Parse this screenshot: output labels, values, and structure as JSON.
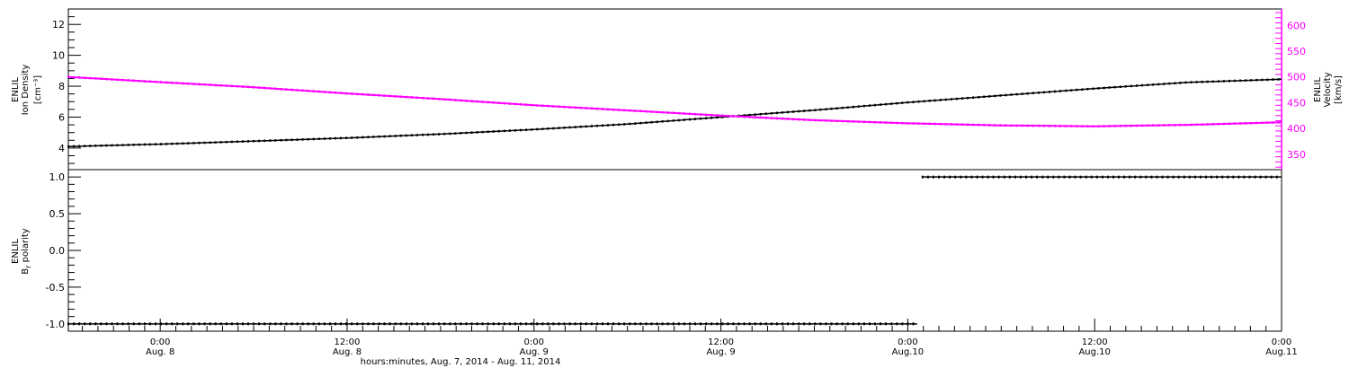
{
  "chart_data": [
    {
      "type": "line",
      "panel": "top",
      "xlabel": "hours:minutes, Aug.  7, 2014 - Aug. 11, 2014",
      "x_ticks": [
        {
          "time_hours": 12,
          "line1": "0:00",
          "line2": "Aug. 8"
        },
        {
          "time_hours": 24,
          "line1": "12:00",
          "line2": "Aug. 8"
        },
        {
          "time_hours": 36,
          "line1": "0:00",
          "line2": "Aug. 9"
        },
        {
          "time_hours": 48,
          "line1": "12:00",
          "line2": "Aug. 9"
        },
        {
          "time_hours": 60,
          "line1": "0:00",
          "line2": "Aug.10"
        },
        {
          "time_hours": 72,
          "line1": "12:00",
          "line2": "Aug.10"
        },
        {
          "time_hours": 84,
          "line1": "0:00",
          "line2": "Aug.11"
        }
      ],
      "xlim_hours": [
        6.1,
        84
      ],
      "left_axis": {
        "label_lines": [
          "ENLIL",
          "Ion Density",
          "[cm⁻³]"
        ],
        "ticks": [
          "4",
          "6",
          "8",
          "10",
          "12"
        ],
        "tick_values": [
          4,
          6,
          8,
          10,
          12
        ],
        "ylim": [
          2.6,
          13.0
        ],
        "color": "#000000"
      },
      "right_axis": {
        "label_lines": [
          "ENLIL",
          "Velocity",
          "[km/s]"
        ],
        "ticks": [
          "350",
          "400",
          "450",
          "500",
          "550",
          "600"
        ],
        "tick_values": [
          350,
          400,
          450,
          500,
          550,
          600
        ],
        "ylim": [
          320,
          632
        ],
        "color": "#ff00ff"
      },
      "series": [
        {
          "axis": "left",
          "color": "#000000",
          "x_hours": [
            6.1,
            12,
            18,
            24,
            30,
            36,
            42,
            48,
            54,
            60,
            66,
            72,
            78,
            84
          ],
          "values": [
            4.1,
            4.25,
            4.45,
            4.65,
            4.9,
            5.2,
            5.55,
            6.0,
            6.45,
            6.95,
            7.4,
            7.85,
            8.25,
            8.45
          ]
        },
        {
          "axis": "right",
          "color": "#ff00ff",
          "x_hours": [
            6.1,
            12,
            18,
            24,
            30,
            36,
            42,
            48,
            54,
            60,
            66,
            72,
            78,
            84
          ],
          "values": [
            500,
            490,
            480,
            468,
            457,
            445,
            435,
            425,
            416,
            410,
            406,
            404,
            407,
            412
          ]
        }
      ]
    },
    {
      "type": "scatter",
      "panel": "bottom",
      "left_axis": {
        "label_lines": [
          "ENLIL",
          "B",
          "polarity"
        ],
        "label_sub": "r",
        "ticks": [
          "-1.0",
          "-0.5",
          "0.0",
          "0.5",
          "1.0"
        ],
        "tick_values": [
          -1.0,
          -0.5,
          0.0,
          0.5,
          1.0
        ],
        "ylim": [
          -1.1,
          1.1
        ]
      },
      "xlim_hours": [
        6.1,
        84
      ],
      "series": [
        {
          "color": "#000000",
          "segment": {
            "x_start_hours": 6.1,
            "x_end_hours": 60.6,
            "value": -1.0
          }
        },
        {
          "color": "#000000",
          "segment": {
            "x_start_hours": 60.95,
            "x_end_hours": 84,
            "value": 1.0
          }
        }
      ]
    }
  ]
}
